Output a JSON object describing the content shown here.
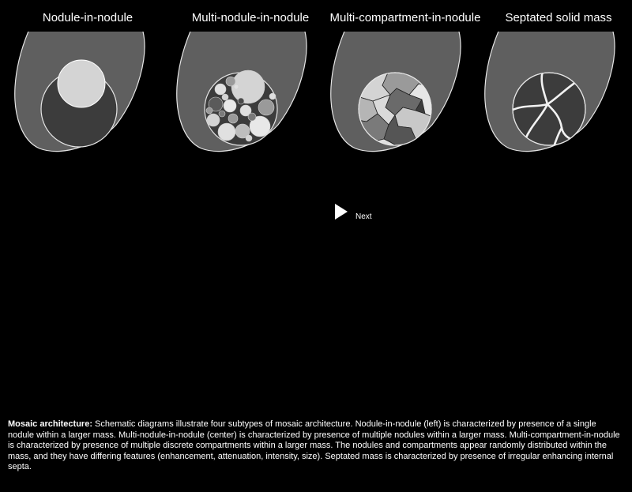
{
  "panels": [
    {
      "title": "Nodule-in-nodule"
    },
    {
      "title": "Multi-nodule-in-nodule"
    },
    {
      "title": "Multi-compartment-in-nodule"
    },
    {
      "title": "Septated solid mass"
    }
  ],
  "nav": {
    "next_label": "Next"
  },
  "caption": {
    "bold": "Mosaic architecture:",
    "text": " Schematic diagrams illustrate four subtypes of mosaic architecture. Nodule-in-nodule (left) is characterized by presence of a single nodule within a larger mass. Multi-nodule-in-nodule (center) is characterized by presence of multiple nodules within a larger mass. Multi-compartment-in-nodule is characterized by presence of multiple discrete compartments within a larger mass. The nodules and compartments appear randomly distributed within the mass, and they have differing features (enhancement, attenuation, intensity, size). Septated mass is characterized by presence of irregular enhancing internal septa."
  },
  "colors": {
    "background": "#000000",
    "mass_fill": "#5f5f5f",
    "outline": "#e6e6e6",
    "inner_dark": "#3c3c3c",
    "nodule_light": "#d4d4d4"
  }
}
